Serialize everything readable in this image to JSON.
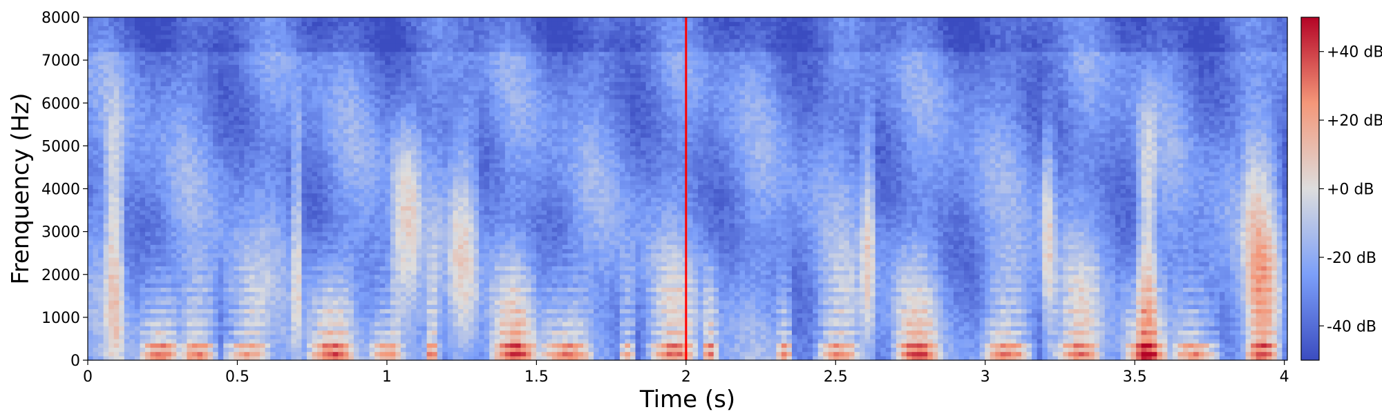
{
  "chart_data": {
    "type": "heatmap",
    "title": "",
    "xlabel": "Time (s)",
    "ylabel": "Frenquency (Hz)",
    "xlim": [
      0,
      4.01
    ],
    "ylim": [
      0,
      8000
    ],
    "xticks": [
      0,
      0.5,
      1,
      1.5,
      2,
      2.5,
      3,
      3.5,
      4
    ],
    "xtick_labels": [
      "0",
      "0.5",
      "1",
      "1.5",
      "2",
      "2.5",
      "3",
      "3.5",
      "4"
    ],
    "yticks": [
      0,
      1000,
      2000,
      3000,
      4000,
      5000,
      6000,
      7000,
      8000
    ],
    "ytick_labels": [
      "0",
      "1000",
      "2000",
      "3000",
      "4000",
      "5000",
      "6000",
      "7000",
      "8000"
    ],
    "colorbar": {
      "range_db": [
        -50,
        50
      ],
      "ticks": [
        40,
        20,
        0,
        -20,
        -40
      ],
      "tick_labels": [
        "+40 dB",
        "+20 dB",
        "+0 dB",
        "-20 dB",
        "-40 dB"
      ],
      "colormap": "coolwarm",
      "color_low": "#3b4cc0",
      "color_mid": "#dddddd",
      "color_high": "#b40426"
    },
    "marker": {
      "x": 2.0,
      "color": "#ff0000"
    },
    "voiced_segments": [
      [
        0.16,
        0.32
      ],
      [
        0.3,
        0.45
      ],
      [
        0.43,
        0.62
      ],
      [
        0.72,
        0.9
      ],
      [
        0.94,
        1.06
      ],
      [
        1.12,
        1.18
      ],
      [
        1.33,
        1.52
      ],
      [
        1.5,
        1.7
      ],
      [
        1.77,
        1.84
      ],
      [
        1.85,
        2.05
      ],
      [
        2.05,
        2.11
      ],
      [
        2.3,
        2.36
      ],
      [
        2.42,
        2.6
      ],
      [
        2.68,
        2.86
      ],
      [
        2.98,
        3.18
      ],
      [
        3.21,
        3.4
      ],
      [
        3.45,
        3.62
      ],
      [
        3.62,
        3.8
      ],
      [
        3.86,
        4.0
      ]
    ],
    "fricative_segments": [
      [
        0.05,
        0.13
      ],
      [
        0.68,
        0.72
      ],
      [
        1.0,
        1.12
      ],
      [
        1.2,
        1.32
      ],
      [
        2.58,
        2.64
      ],
      [
        3.18,
        3.24
      ],
      [
        3.5,
        3.58
      ],
      [
        3.85,
        4.0
      ]
    ]
  }
}
